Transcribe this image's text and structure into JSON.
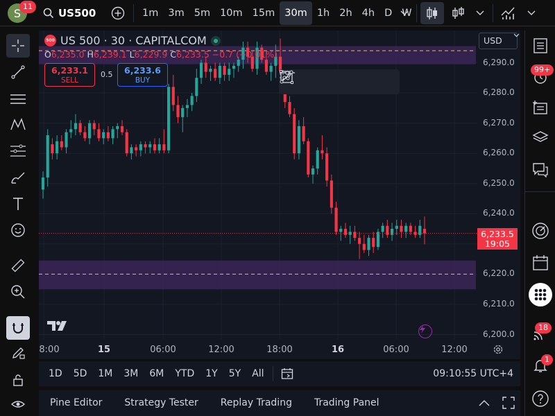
{
  "header": {
    "avatar_letter": "S",
    "notification_count": "11",
    "symbol": "US500",
    "intervals": [
      "1m",
      "3m",
      "5m",
      "10m",
      "15m",
      "30m",
      "1h",
      "2h",
      "4h",
      "D",
      "W"
    ],
    "active_interval": "30m"
  },
  "legend": {
    "title": "US 500 · 30 · CAPITALCOM",
    "logo_text": "500",
    "open_key": "O",
    "open": "6,235.0",
    "high_key": "H",
    "high": "6,239.1",
    "low_key": "L",
    "low": "6,229.9",
    "close_key": "C",
    "close": "6,233.5",
    "change": "−0.7 (−0.01%)"
  },
  "trade": {
    "sell_price": "6,233.1",
    "sell_label": "SELL",
    "buy_price": "6,233.6",
    "buy_label": "BUY",
    "spread": "0.5"
  },
  "currency": "USD",
  "price_axis": [
    "6,290.0",
    "6,280.0",
    "6,270.0",
    "6,260.0",
    "6,250.0",
    "6,240.0",
    "6,230.0",
    "6,220.0",
    "6,210.0",
    "6,200.0"
  ],
  "time_axis": [
    "8:00",
    "15",
    "06:00",
    "12:00",
    "18:00",
    "16",
    "06:00",
    "12:00"
  ],
  "last_price": {
    "price": "6,233.5",
    "countdown": "19:05"
  },
  "colors": {
    "up": "#26a69a",
    "down": "#f23645",
    "zone": "#3b2457",
    "zone_line": "#f5c518",
    "accent": "#2962ff"
  },
  "chart_data": {
    "type": "candlestick",
    "title": "US 500 · 30 · CAPITALCOM",
    "ylim": [
      6197,
      6298
    ],
    "zones": [
      {
        "from": 6289.5,
        "to": 6295.5,
        "line": 6294
      },
      {
        "from": 6215.0,
        "to": 6224.5,
        "line": 6220
      }
    ],
    "last_price": 6233.5,
    "candles": [
      [
        6248,
        6254,
        6245,
        6252
      ],
      [
        6252,
        6268,
        6249,
        6266
      ],
      [
        6263,
        6265,
        6258,
        6260
      ],
      [
        6260,
        6266,
        6258,
        6264
      ],
      [
        6264,
        6266,
        6261,
        6262
      ],
      [
        6262,
        6268,
        6260,
        6267
      ],
      [
        6267,
        6271,
        6265,
        6268
      ],
      [
        6268,
        6273,
        6266,
        6270
      ],
      [
        6270,
        6271,
        6266,
        6267
      ],
      [
        6267,
        6269,
        6264,
        6265
      ],
      [
        6265,
        6271,
        6263,
        6270
      ],
      [
        6270,
        6271,
        6266,
        6268
      ],
      [
        6268,
        6270,
        6264,
        6265
      ],
      [
        6265,
        6268,
        6263,
        6267
      ],
      [
        6267,
        6269,
        6264,
        6265
      ],
      [
        6265,
        6269,
        6263,
        6268
      ],
      [
        6268,
        6270,
        6265,
        6269
      ],
      [
        6269,
        6271,
        6266,
        6267
      ],
      [
        6267,
        6268,
        6259,
        6260
      ],
      [
        6260,
        6263,
        6258,
        6262
      ],
      [
        6262,
        6263,
        6259,
        6261
      ],
      [
        6261,
        6264,
        6259,
        6263
      ],
      [
        6263,
        6264,
        6260,
        6262
      ],
      [
        6262,
        6264,
        6260,
        6263
      ],
      [
        6263,
        6265,
        6260,
        6261
      ],
      [
        6261,
        6265,
        6260,
        6263
      ],
      [
        6263,
        6268,
        6260,
        6261
      ],
      [
        6261,
        6283,
        6260,
        6282
      ],
      [
        6282,
        6286,
        6274,
        6276
      ],
      [
        6276,
        6279,
        6270,
        6272
      ],
      [
        6272,
        6276,
        6267,
        6275
      ],
      [
        6275,
        6278,
        6272,
        6276
      ],
      [
        6276,
        6280,
        6274,
        6279
      ],
      [
        6279,
        6288,
        6277,
        6285
      ],
      [
        6285,
        6291,
        6283,
        6290
      ],
      [
        6290,
        6292,
        6285,
        6287
      ],
      [
        6287,
        6289,
        6284,
        6288
      ],
      [
        6288,
        6290,
        6284,
        6285
      ],
      [
        6285,
        6290,
        6283,
        6289
      ],
      [
        6289,
        6290,
        6284,
        6286
      ],
      [
        6286,
        6290,
        6284,
        6288
      ],
      [
        6288,
        6290,
        6285,
        6289
      ],
      [
        6289,
        6292,
        6287,
        6291
      ],
      [
        6291,
        6297,
        6288,
        6295
      ],
      [
        6295,
        6297,
        6290,
        6292
      ],
      [
        6292,
        6294,
        6287,
        6288
      ],
      [
        6288,
        6297,
        6286,
        6295
      ],
      [
        6295,
        6296,
        6290,
        6291
      ],
      [
        6291,
        6294,
        6286,
        6287
      ],
      [
        6287,
        6290,
        6284,
        6289
      ],
      [
        6289,
        6296,
        6285,
        6292
      ],
      [
        6292,
        6298,
        6280,
        6281
      ],
      [
        6281,
        6283,
        6275,
        6277
      ],
      [
        6277,
        6279,
        6272,
        6273
      ],
      [
        6273,
        6275,
        6258,
        6260
      ],
      [
        6260,
        6271,
        6258,
        6269
      ],
      [
        6269,
        6272,
        6263,
        6264
      ],
      [
        6264,
        6265,
        6252,
        6253
      ],
      [
        6253,
        6256,
        6250,
        6255
      ],
      [
        6255,
        6262,
        6253,
        6261
      ],
      [
        6261,
        6266,
        6258,
        6260
      ],
      [
        6260,
        6262,
        6249,
        6251
      ],
      [
        6251,
        6253,
        6240,
        6242
      ],
      [
        6242,
        6244,
        6233,
        6234
      ],
      [
        6234,
        6236,
        6231,
        6235
      ],
      [
        6235,
        6237,
        6232,
        6233
      ],
      [
        6233,
        6236,
        6230,
        6234
      ],
      [
        6234,
        6236,
        6231,
        6232
      ],
      [
        6232,
        6234,
        6225,
        6230
      ],
      [
        6230,
        6233,
        6227,
        6228
      ],
      [
        6228,
        6233,
        6226,
        6232
      ],
      [
        6232,
        6234,
        6227,
        6229
      ],
      [
        6229,
        6235,
        6228,
        6234
      ],
      [
        6234,
        6237,
        6232,
        6236
      ],
      [
        6236,
        6238,
        6232,
        6233
      ],
      [
        6233,
        6237,
        6231,
        6235
      ],
      [
        6235,
        6238,
        6233,
        6236
      ],
      [
        6236,
        6238,
        6232,
        6234
      ],
      [
        6234,
        6237,
        6232,
        6236
      ],
      [
        6236,
        6237,
        6233,
        6234
      ],
      [
        6234,
        6236,
        6232,
        6233
      ],
      [
        6233,
        6238,
        6232,
        6236
      ],
      [
        6235,
        6239.1,
        6229.9,
        6233.5
      ]
    ]
  },
  "range_bar": {
    "ranges": [
      "1D",
      "5D",
      "1M",
      "3M",
      "6M",
      "YTD",
      "1Y",
      "5Y",
      "All"
    ],
    "clock": "09:10:55 UTC+4"
  },
  "panels": [
    "Pine Editor",
    "Strategy Tester",
    "Replay Trading",
    "Trading Panel"
  ],
  "right_badges": {
    "alerts": "99+",
    "ideas": "18",
    "notifications": "1"
  }
}
